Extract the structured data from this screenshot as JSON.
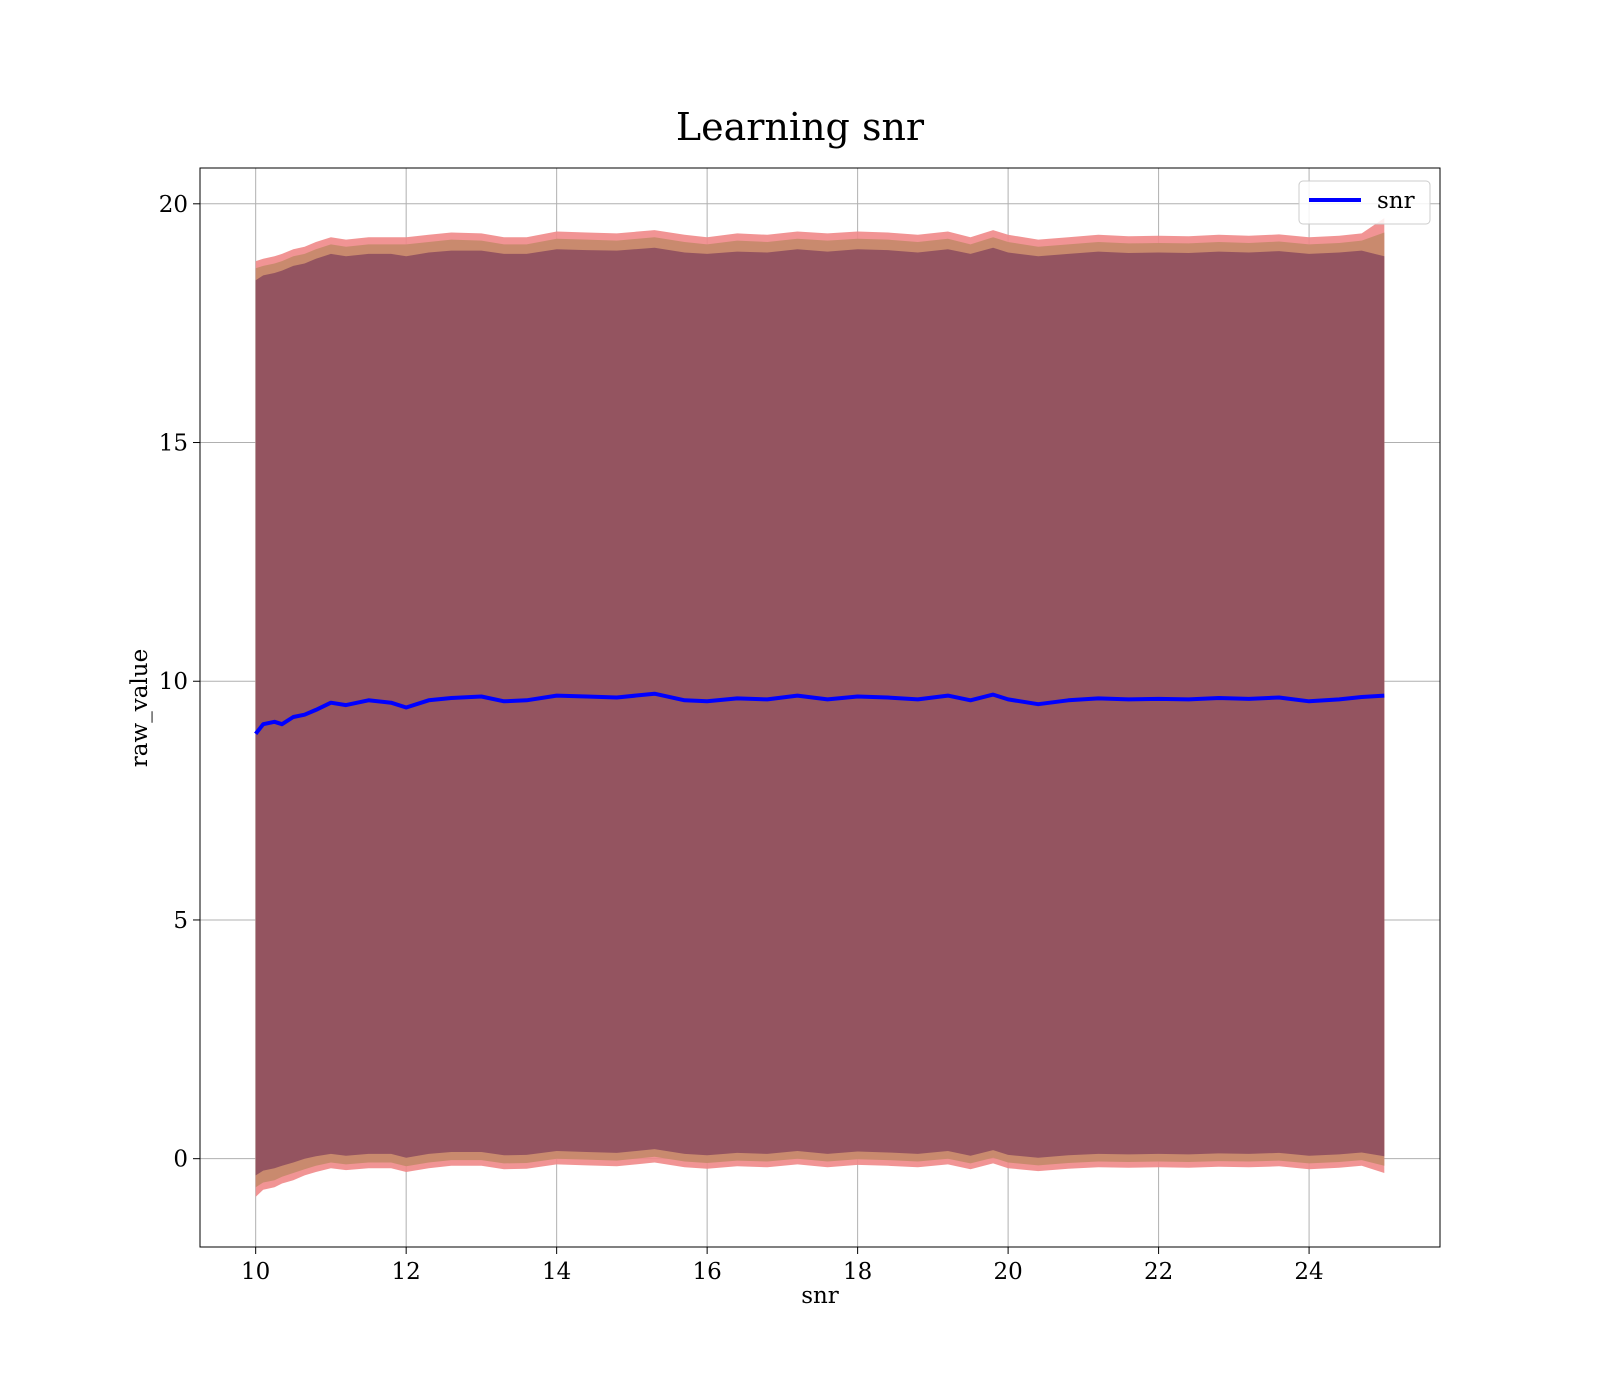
{
  "chart_data": {
    "type": "line",
    "title": "Learning snr",
    "xlabel": "snr",
    "ylabel": "raw_value",
    "xlim": [
      9.26,
      25.74
    ],
    "ylim": [
      -1.85,
      20.75
    ],
    "xticks": [
      10,
      12,
      14,
      16,
      18,
      20,
      22,
      24
    ],
    "yticks": [
      0,
      5,
      10,
      15,
      20
    ],
    "grid": true,
    "legend_position": "top-right",
    "colors": {
      "line": "#0000ff",
      "band_inner": "#8b4a5e",
      "band_middle": "#c98a6e",
      "band_outer": "#f08888"
    },
    "series": [
      {
        "name": "snr",
        "x": [
          10.0,
          10.1,
          10.25,
          10.35,
          10.5,
          10.65,
          10.8,
          11.0,
          11.2,
          11.5,
          11.8,
          12.0,
          12.3,
          12.6,
          13.0,
          13.3,
          13.6,
          14.0,
          14.4,
          14.8,
          15.3,
          15.7,
          16.0,
          16.4,
          16.8,
          17.2,
          17.6,
          18.0,
          18.4,
          18.8,
          19.2,
          19.5,
          19.8,
          20.0,
          20.4,
          20.8,
          21.2,
          21.6,
          22.0,
          22.4,
          22.8,
          23.2,
          23.6,
          24.0,
          24.4,
          24.7,
          25.0
        ],
        "y": [
          8.9,
          9.1,
          9.15,
          9.1,
          9.25,
          9.3,
          9.4,
          9.55,
          9.5,
          9.6,
          9.55,
          9.45,
          9.6,
          9.65,
          9.68,
          9.58,
          9.6,
          9.7,
          9.68,
          9.66,
          9.74,
          9.6,
          9.58,
          9.64,
          9.62,
          9.7,
          9.62,
          9.68,
          9.66,
          9.62,
          9.7,
          9.6,
          9.72,
          9.62,
          9.52,
          9.6,
          9.64,
          9.62,
          9.63,
          9.62,
          9.65,
          9.63,
          9.66,
          9.58,
          9.62,
          9.67,
          9.7
        ]
      }
    ],
    "bands": {
      "x": [
        10.0,
        10.1,
        10.25,
        10.35,
        10.5,
        10.65,
        10.8,
        11.0,
        11.2,
        11.5,
        11.8,
        12.0,
        12.3,
        12.6,
        13.0,
        13.3,
        13.6,
        14.0,
        14.4,
        14.8,
        15.3,
        15.7,
        16.0,
        16.4,
        16.8,
        17.2,
        17.6,
        18.0,
        18.4,
        18.8,
        19.2,
        19.5,
        19.8,
        20.0,
        20.4,
        20.8,
        21.2,
        21.6,
        22.0,
        22.4,
        22.8,
        23.2,
        23.6,
        24.0,
        24.4,
        24.7,
        25.0
      ],
      "outer_upper": [
        18.8,
        18.85,
        18.9,
        18.95,
        19.05,
        19.1,
        19.2,
        19.3,
        19.25,
        19.3,
        19.3,
        19.3,
        19.35,
        19.4,
        19.38,
        19.3,
        19.3,
        19.42,
        19.4,
        19.38,
        19.45,
        19.35,
        19.3,
        19.38,
        19.35,
        19.42,
        19.38,
        19.42,
        19.4,
        19.35,
        19.42,
        19.3,
        19.45,
        19.35,
        19.25,
        19.3,
        19.35,
        19.32,
        19.33,
        19.32,
        19.35,
        19.33,
        19.36,
        19.3,
        19.33,
        19.38,
        19.7
      ],
      "middle_upper": [
        18.65,
        18.7,
        18.75,
        18.8,
        18.9,
        18.95,
        19.05,
        19.15,
        19.1,
        19.15,
        19.15,
        19.15,
        19.2,
        19.25,
        19.23,
        19.15,
        19.15,
        19.27,
        19.25,
        19.23,
        19.3,
        19.2,
        19.15,
        19.23,
        19.2,
        19.27,
        19.23,
        19.27,
        19.25,
        19.2,
        19.27,
        19.15,
        19.3,
        19.2,
        19.1,
        19.15,
        19.2,
        19.17,
        19.18,
        19.17,
        19.2,
        19.18,
        19.21,
        19.15,
        19.18,
        19.23,
        19.4
      ],
      "inner_upper": [
        18.4,
        18.5,
        18.55,
        18.6,
        18.7,
        18.75,
        18.85,
        18.95,
        18.9,
        18.95,
        18.95,
        18.9,
        18.98,
        19.02,
        19.02,
        18.95,
        18.95,
        19.05,
        19.03,
        19.02,
        19.08,
        18.98,
        18.95,
        19.0,
        18.98,
        19.05,
        19.0,
        19.05,
        19.03,
        18.98,
        19.05,
        18.95,
        19.08,
        18.98,
        18.9,
        18.95,
        19.0,
        18.97,
        18.98,
        18.97,
        19.0,
        18.98,
        19.01,
        18.95,
        18.98,
        19.02,
        18.9
      ],
      "inner_lower": [
        -0.35,
        -0.25,
        -0.2,
        -0.15,
        -0.08,
        0.0,
        0.05,
        0.1,
        0.06,
        0.1,
        0.1,
        0.02,
        0.1,
        0.14,
        0.14,
        0.07,
        0.08,
        0.16,
        0.14,
        0.12,
        0.2,
        0.1,
        0.07,
        0.12,
        0.1,
        0.16,
        0.1,
        0.15,
        0.13,
        0.1,
        0.16,
        0.06,
        0.18,
        0.08,
        0.02,
        0.07,
        0.1,
        0.09,
        0.1,
        0.09,
        0.11,
        0.1,
        0.12,
        0.06,
        0.09,
        0.13,
        0.05
      ],
      "middle_lower": [
        -0.6,
        -0.5,
        -0.45,
        -0.38,
        -0.3,
        -0.22,
        -0.15,
        -0.08,
        -0.12,
        -0.08,
        -0.08,
        -0.16,
        -0.08,
        -0.03,
        -0.03,
        -0.1,
        -0.09,
        0.0,
        -0.02,
        -0.04,
        0.04,
        -0.06,
        -0.09,
        -0.04,
        -0.06,
        0.0,
        -0.06,
        -0.01,
        -0.03,
        -0.06,
        0.0,
        -0.1,
        0.02,
        -0.08,
        -0.14,
        -0.09,
        -0.06,
        -0.07,
        -0.06,
        -0.07,
        -0.05,
        -0.06,
        -0.04,
        -0.1,
        -0.07,
        -0.03,
        -0.15
      ],
      "outer_lower": [
        -0.8,
        -0.65,
        -0.6,
        -0.52,
        -0.45,
        -0.35,
        -0.28,
        -0.2,
        -0.24,
        -0.2,
        -0.2,
        -0.28,
        -0.2,
        -0.15,
        -0.15,
        -0.22,
        -0.21,
        -0.12,
        -0.14,
        -0.16,
        -0.08,
        -0.18,
        -0.21,
        -0.16,
        -0.18,
        -0.12,
        -0.18,
        -0.13,
        -0.15,
        -0.18,
        -0.12,
        -0.22,
        -0.1,
        -0.2,
        -0.26,
        -0.21,
        -0.18,
        -0.19,
        -0.18,
        -0.19,
        -0.17,
        -0.18,
        -0.16,
        -0.22,
        -0.19,
        -0.15,
        -0.3
      ]
    }
  }
}
